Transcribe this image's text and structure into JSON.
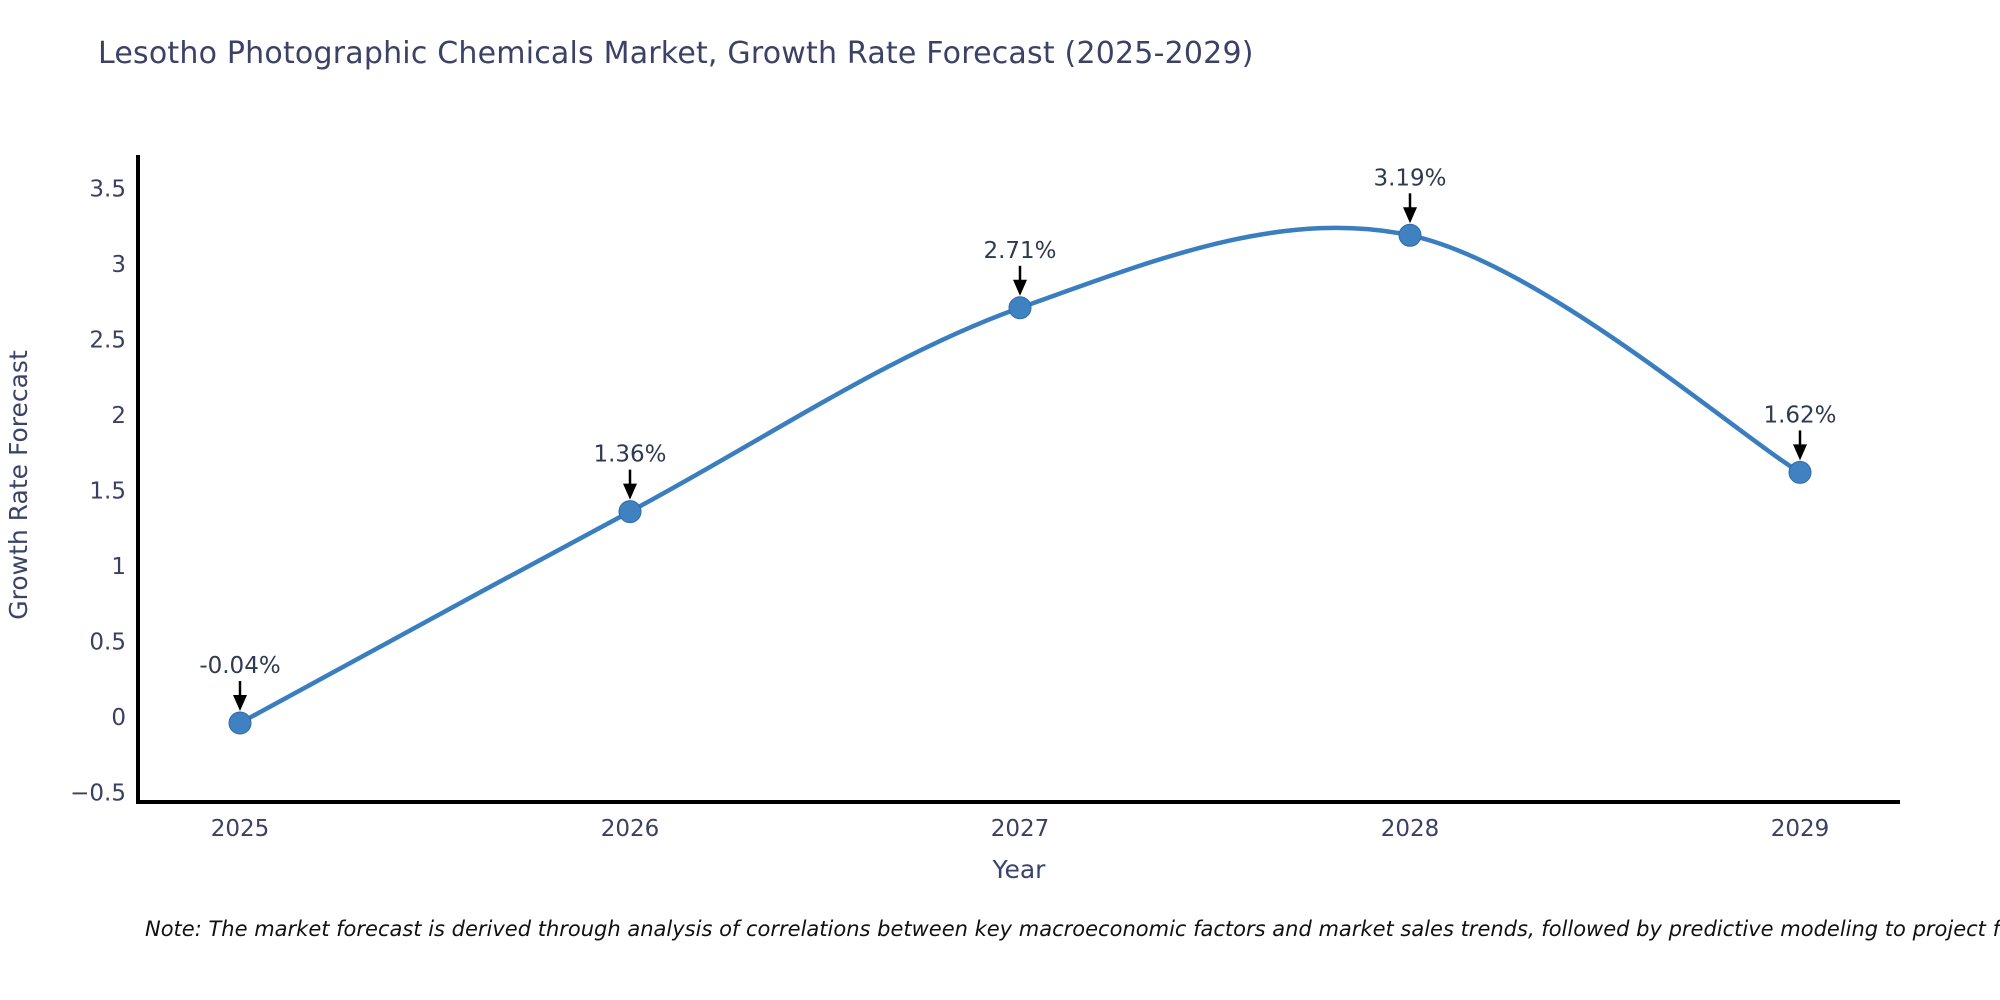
{
  "page": {
    "background": "#ffffff"
  },
  "header": {
    "title": "Lesotho Photographic Chemicals Market, Growth Rate Forecast (2025-2029)",
    "title_color": "#3b4266"
  },
  "footnote": {
    "text": "Note: The market forecast is derived through analysis of correlations between key macroeconomic factors and market sales trends, followed by predictive modeling to project future sal",
    "color": "#111111"
  },
  "chart_data": {
    "type": "line",
    "title": "Lesotho Photographic Chemicals Market, Growth Rate Forecast (2025-2029)",
    "line_shape": "spline",
    "categories": [
      "2025",
      "2026",
      "2027",
      "2028",
      "2029"
    ],
    "series": [
      {
        "name": "Growth Rate Forecast",
        "values": [
          -0.04,
          1.36,
          2.71,
          3.19,
          1.62
        ],
        "point_labels": [
          "-0.04%",
          "1.36%",
          "2.71%",
          "3.19%",
          "1.62%"
        ]
      }
    ],
    "xlabel": "Year",
    "ylabel": "Growth Rate Forecast",
    "ylim": [
      -0.5,
      3.5
    ],
    "ytick_values": [
      -0.5,
      0,
      0.5,
      1,
      1.5,
      2,
      2.5,
      3,
      3.5
    ],
    "ytick_labels": [
      "−0.5",
      "0",
      "0.5",
      "1",
      "1.5",
      "2",
      "2.5",
      "3",
      "3.5"
    ],
    "grid": false,
    "legend": "none",
    "annotations_have_arrows": true,
    "colors": {
      "line": "#3a7ebf",
      "marker": "#3f81c1",
      "marker_edge": "#2e6ca8",
      "axis": "#000000",
      "tick_label": "#3b3f63",
      "axis_title": "#3b4468",
      "annotation_text": "#2f3a50",
      "annotation_arrow": "#000000"
    }
  }
}
